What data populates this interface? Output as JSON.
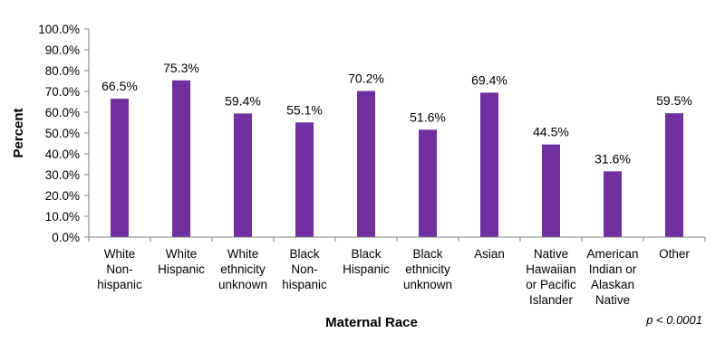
{
  "chart_data": {
    "type": "bar",
    "categories": [
      "White Non-hispanic",
      "White Hispanic",
      "White ethnicity unknown",
      "Black Non-hispanic",
      "Black Hispanic",
      "Black ethnicity unknown",
      "Asian",
      "Native Hawaiian or Pacific Islander",
      "American Indian or Alaskan Native",
      "Other"
    ],
    "category_lines": [
      [
        "White",
        "Non-",
        "hispanic"
      ],
      [
        "White",
        "Hispanic"
      ],
      [
        "White",
        "ethnicity",
        "unknown"
      ],
      [
        "Black",
        "Non-",
        "hispanic"
      ],
      [
        "Black",
        "Hispanic"
      ],
      [
        "Black",
        "ethnicity",
        "unknown"
      ],
      [
        "Asian"
      ],
      [
        "Native",
        "Hawaiian",
        "or Pacific",
        "Islander"
      ],
      [
        "American",
        "Indian or",
        "Alaskan",
        "Native"
      ],
      [
        "Other"
      ]
    ],
    "values": [
      66.5,
      75.3,
      59.4,
      55.1,
      70.2,
      51.6,
      69.4,
      44.5,
      31.6,
      59.5
    ],
    "data_labels": [
      "66.5%",
      "75.3%",
      "59.4%",
      "55.1%",
      "70.2%",
      "51.6%",
      "69.4%",
      "44.5%",
      "31.6%",
      "59.5%"
    ],
    "xlabel": "Maternal Race",
    "ylabel": "Percent",
    "ylim": [
      0,
      100
    ],
    "yticks": [
      "0.0%",
      "10.0%",
      "20.0%",
      "30.0%",
      "40.0%",
      "50.0%",
      "60.0%",
      "70.0%",
      "80.0%",
      "90.0%",
      "100.0%"
    ],
    "annotation": "p < 0.0001",
    "grid": false,
    "bar_color": "#7030a0",
    "axis_color": "#808080"
  }
}
